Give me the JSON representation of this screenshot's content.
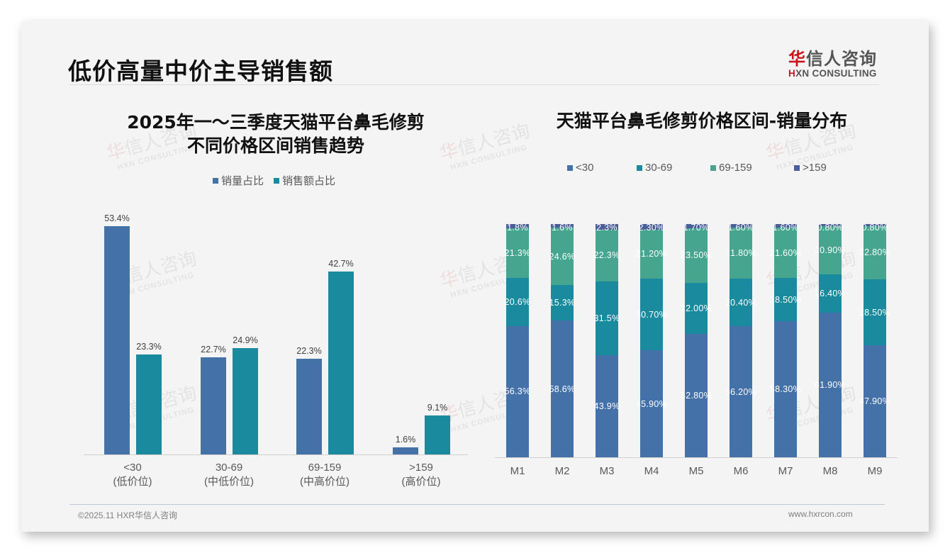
{
  "header": {
    "title": "低价高量中价主导销售额",
    "logo": {
      "cn_red": "华",
      "cn_rest": "信人咨询",
      "en_red": "H",
      "en_rest": "XN CONSULTING"
    }
  },
  "watermark": {
    "cn_red": "华",
    "cn_rest": "信人咨询",
    "en": "HXN CONSULTING"
  },
  "left_chart": {
    "title_line1": "2025年一～三季度天猫平台鼻毛修剪",
    "title_line2": "不同价格区间销售趋势",
    "legend": [
      {
        "label": "销量占比",
        "color": "#4472a8"
      },
      {
        "label": "销售额占比",
        "color": "#1a8a9e"
      }
    ],
    "categories": [
      {
        "range": "<30",
        "desc": "(低价位)"
      },
      {
        "range": "30-69",
        "desc": "(中低价位)"
      },
      {
        "range": "69-159",
        "desc": "(中高价位)"
      },
      {
        "range": ">159",
        "desc": "(高价位)"
      }
    ],
    "labels": {
      "volume": [
        "53.4%",
        "22.7%",
        "22.3%",
        "1.6%"
      ],
      "sales": [
        "23.3%",
        "24.9%",
        "42.7%",
        "9.1%"
      ]
    }
  },
  "right_chart": {
    "title": "天猫平台鼻毛修剪价格区间-销量分布",
    "legend": [
      {
        "label": "<30",
        "color": "#4472a8"
      },
      {
        "label": "30-69",
        "color": "#1a8a9e"
      },
      {
        "label": "69-159",
        "color": "#45a58e"
      },
      {
        "label": ">159",
        "color": "#4a5f9a"
      }
    ],
    "months": [
      "M1",
      "M2",
      "M3",
      "M4",
      "M5",
      "M6",
      "M7",
      "M8",
      "M9"
    ],
    "labels": [
      [
        "56.3%",
        "20.6%",
        "21.3%",
        "1.8%"
      ],
      [
        "58.6%",
        "15.3%",
        "24.6%",
        "1.6%"
      ],
      [
        "43.9%",
        "31.5%",
        "22.3%",
        "2.3%"
      ],
      [
        "45.90%",
        "30.70%",
        "21.20%",
        "2.30%"
      ],
      [
        "52.80%",
        "22.00%",
        "23.50%",
        "1.70%"
      ],
      [
        "56.20%",
        "20.40%",
        "21.80%",
        "1.60%"
      ],
      [
        "58.30%",
        "18.50%",
        "21.60%",
        "1.60%"
      ],
      [
        "61.90%",
        "16.40%",
        "20.90%",
        "0.80%"
      ],
      [
        "47.90%",
        "28.50%",
        "22.80%",
        "0.80%"
      ]
    ]
  },
  "footer": {
    "copyright": "©2025.11 HXR华信人咨询",
    "website": "www.hxrcon.com"
  },
  "chart_data": [
    {
      "type": "bar",
      "title": "2025年一～三季度天猫平台鼻毛修剪不同价格区间销售趋势",
      "categories": [
        "<30 (低价位)",
        "30-69 (中低价位)",
        "69-159 (中高价位)",
        ">159 (高价位)"
      ],
      "series": [
        {
          "name": "销量占比",
          "color": "#4472a8",
          "values": [
            53.4,
            22.7,
            22.3,
            1.6
          ]
        },
        {
          "name": "销售额占比",
          "color": "#1a8a9e",
          "values": [
            23.3,
            24.9,
            42.7,
            9.1
          ]
        }
      ],
      "xlabel": "",
      "ylabel": "",
      "unit": "%",
      "ylim": [
        0,
        55
      ],
      "grid": false,
      "legend_position": "top"
    },
    {
      "type": "bar",
      "stacked": true,
      "percent_stacked": true,
      "title": "天猫平台鼻毛修剪价格区间-销量分布",
      "categories": [
        "M1",
        "M2",
        "M3",
        "M4",
        "M5",
        "M6",
        "M7",
        "M8",
        "M9"
      ],
      "series": [
        {
          "name": "<30",
          "color": "#4472a8",
          "values": [
            56.3,
            58.6,
            43.9,
            45.9,
            52.8,
            56.2,
            58.3,
            61.9,
            47.9
          ]
        },
        {
          "name": "30-69",
          "color": "#1a8a9e",
          "values": [
            20.6,
            15.3,
            31.5,
            30.7,
            22.0,
            20.4,
            18.5,
            16.4,
            28.5
          ]
        },
        {
          "name": "69-159",
          "color": "#45a58e",
          "values": [
            21.3,
            24.6,
            22.3,
            21.2,
            23.5,
            21.8,
            21.6,
            20.9,
            22.8
          ]
        },
        {
          "name": ">159",
          "color": "#4a5f9a",
          "values": [
            1.8,
            1.6,
            2.3,
            2.3,
            1.7,
            1.6,
            1.6,
            0.8,
            0.8
          ]
        }
      ],
      "xlabel": "",
      "ylabel": "",
      "unit": "%",
      "ylim": [
        0,
        100
      ],
      "grid": false,
      "legend_position": "top"
    }
  ]
}
